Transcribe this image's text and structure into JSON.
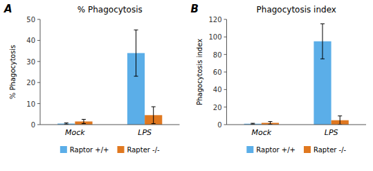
{
  "chart_data": [
    {
      "type": "bar",
      "title": "% Phagocytosis",
      "y_label": "% Phagocytosis",
      "annotations": [
        "A"
      ],
      "categories": [
        "Mock",
        "LPS"
      ],
      "series": [
        {
          "name": "Raptor +/+",
          "color": "#5baee8",
          "values": [
            0.5,
            34.0
          ],
          "errors": [
            0.3,
            11.0
          ]
        },
        {
          "name": "Rapter -/-",
          "color": "#e07820",
          "values": [
            1.5,
            4.5
          ],
          "errors": [
            1.0,
            4.0
          ]
        }
      ],
      "ylim": [
        0,
        50
      ],
      "yticks": [
        0,
        10,
        20,
        30,
        40,
        50
      ],
      "grid": false,
      "legend": "bottom"
    },
    {
      "type": "bar",
      "title": "Phagocytosis index",
      "y_label": "Phagocytosis index",
      "annotations": [
        "B"
      ],
      "categories": [
        "Mock",
        "LPS"
      ],
      "series": [
        {
          "name": "Raptor +/+",
          "color": "#5baee8",
          "values": [
            1.0,
            95.0
          ],
          "errors": [
            0.5,
            20.0
          ]
        },
        {
          "name": "Rapter -/-",
          "color": "#e07820",
          "values": [
            2.0,
            5.0
          ],
          "errors": [
            1.5,
            5.0
          ]
        }
      ],
      "ylim": [
        0,
        120
      ],
      "yticks": [
        0,
        20,
        40,
        60,
        80,
        100,
        120
      ],
      "grid": false,
      "legend": "bottom"
    }
  ]
}
